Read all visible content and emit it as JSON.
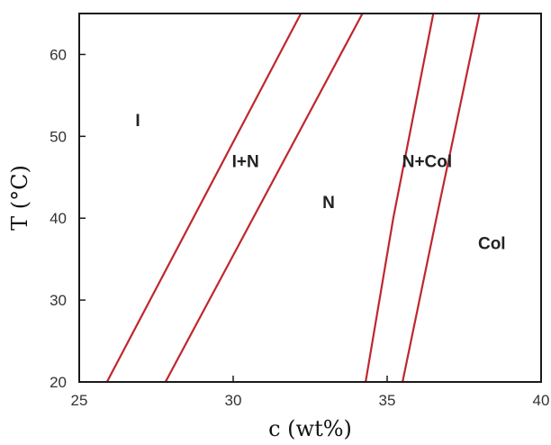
{
  "chart_data": {
    "type": "line",
    "title": "",
    "xlabel": "c (wt%)",
    "ylabel": "T (°C)",
    "xlim": [
      25,
      40
    ],
    "ylim": [
      20,
      65
    ],
    "xticks": [
      "25",
      "30",
      "35",
      "40"
    ],
    "yticks": [
      "20",
      "30",
      "40",
      "50",
      "60"
    ],
    "grid": false,
    "line_color": "#c0262d",
    "series": [
      {
        "x": [
          25.9,
          32.2
        ],
        "y": [
          20,
          65
        ]
      },
      {
        "x": [
          27.8,
          34.2
        ],
        "y": [
          20,
          65
        ]
      },
      {
        "x": [
          34.3,
          35.2,
          36.5
        ],
        "y": [
          20,
          40,
          65
        ]
      },
      {
        "x": [
          35.5,
          36.6,
          38.0
        ],
        "y": [
          20,
          40,
          65
        ]
      }
    ],
    "annotations": [
      {
        "text": "I",
        "x": 26.9,
        "y": 52
      },
      {
        "text": "I+N",
        "x": 30.4,
        "y": 47
      },
      {
        "text": "N",
        "x": 33.1,
        "y": 42
      },
      {
        "text": "N+Col",
        "x": 36.3,
        "y": 47
      },
      {
        "text": "Col",
        "x": 38.4,
        "y": 37
      }
    ]
  }
}
